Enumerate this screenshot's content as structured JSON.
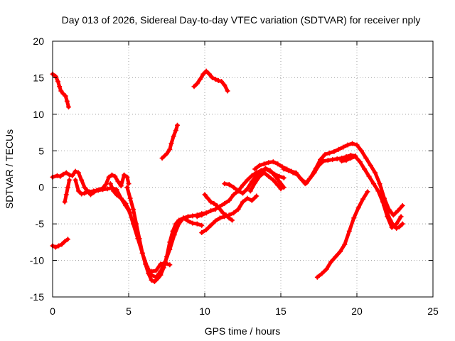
{
  "chart_data": {
    "type": "scatter",
    "title": "Day 013 of 2026, Sidereal Day-to-day VTEC variation (SDTVAR) for receiver nply",
    "xlabel": "GPS time / hours",
    "ylabel": "SDTVAR / TECUs",
    "xlim": [
      0,
      25
    ],
    "ylim": [
      -15,
      20
    ],
    "xticks": [
      0,
      5,
      10,
      15,
      20,
      25
    ],
    "yticks": [
      -15,
      -10,
      -5,
      0,
      5,
      10,
      15,
      20
    ],
    "xtick_labels": [
      "0",
      "5",
      "10",
      "15",
      "20",
      "25"
    ],
    "ytick_labels": [
      "-15",
      "-10",
      "-5",
      "0",
      "5",
      "10",
      "15",
      "20"
    ],
    "grid": true,
    "marker": "+",
    "color": "#ff0000",
    "series": [
      {
        "name": "s1",
        "points": [
          [
            0.0,
            15.5
          ],
          [
            0.2,
            15.2
          ],
          [
            0.35,
            14.5
          ],
          [
            0.45,
            13.8
          ],
          [
            0.55,
            13.2
          ],
          [
            0.7,
            12.8
          ],
          [
            0.85,
            12.5
          ],
          [
            0.95,
            11.8
          ],
          [
            1.05,
            11.0
          ]
        ]
      },
      {
        "name": "s2",
        "points": [
          [
            0.0,
            -8.0
          ],
          [
            0.2,
            -8.2
          ],
          [
            0.4,
            -8.0
          ],
          [
            0.6,
            -7.8
          ],
          [
            0.8,
            -7.4
          ],
          [
            1.0,
            -7.1
          ]
        ]
      },
      {
        "name": "s3",
        "points": [
          [
            0.0,
            1.4
          ],
          [
            0.3,
            1.6
          ],
          [
            0.5,
            1.5
          ],
          [
            0.7,
            1.8
          ],
          [
            0.9,
            2.0
          ],
          [
            1.1,
            1.7
          ],
          [
            1.3,
            1.6
          ],
          [
            1.5,
            2.2
          ],
          [
            1.7,
            2.0
          ],
          [
            1.9,
            1.0
          ],
          [
            2.1,
            0.0
          ],
          [
            2.3,
            -0.5
          ],
          [
            2.5,
            -1.0
          ],
          [
            2.7,
            -0.7
          ],
          [
            2.9,
            -0.4
          ],
          [
            3.1,
            -0.3
          ],
          [
            3.3,
            -0.1
          ],
          [
            3.5,
            0.4
          ],
          [
            3.7,
            1.4
          ],
          [
            3.9,
            1.7
          ],
          [
            4.1,
            1.5
          ],
          [
            4.3,
            0.8
          ],
          [
            4.5,
            0.2
          ],
          [
            4.7,
            1.7
          ],
          [
            4.9,
            1.4
          ],
          [
            5.0,
            0.5
          ]
        ]
      },
      {
        "name": "s4",
        "points": [
          [
            0.8,
            -2.0
          ],
          [
            0.9,
            -1.0
          ],
          [
            1.0,
            0.0
          ],
          [
            1.1,
            1.0
          ]
        ]
      },
      {
        "name": "s5",
        "points": [
          [
            1.5,
            1.0
          ],
          [
            1.7,
            -0.5
          ],
          [
            1.9,
            -0.9
          ],
          [
            2.1,
            -0.8
          ],
          [
            2.4,
            -0.6
          ],
          [
            2.7,
            -0.5
          ],
          [
            3.0,
            -0.4
          ],
          [
            3.3,
            -0.3
          ],
          [
            3.6,
            -0.2
          ],
          [
            3.9,
            -0.1
          ],
          [
            4.2,
            -0.3
          ],
          [
            4.5,
            -1.5
          ],
          [
            4.8,
            -2.5
          ],
          [
            5.1,
            -3.5
          ]
        ]
      },
      {
        "name": "s6",
        "points": [
          [
            3.8,
            0.5
          ],
          [
            4.0,
            -0.5
          ],
          [
            4.2,
            -1.0
          ],
          [
            4.5,
            -1.5
          ],
          [
            4.8,
            -2.2
          ],
          [
            5.0,
            -3.0
          ],
          [
            5.3,
            -5.0
          ],
          [
            5.6,
            -7.0
          ],
          [
            5.9,
            -9.0
          ],
          [
            6.2,
            -10.8
          ],
          [
            6.5,
            -12.0
          ],
          [
            6.8,
            -12.3
          ],
          [
            7.1,
            -11.5
          ],
          [
            7.4,
            -10.2
          ],
          [
            7.7,
            -8.5
          ],
          [
            8.0,
            -6.5
          ],
          [
            8.3,
            -5.0
          ],
          [
            8.6,
            -4.2
          ],
          [
            8.9,
            -4.0
          ],
          [
            9.2,
            -3.9
          ],
          [
            9.5,
            -3.8
          ],
          [
            9.8,
            -3.6
          ],
          [
            10.1,
            -3.5
          ]
        ]
      },
      {
        "name": "s7",
        "points": [
          [
            4.9,
            0.0
          ],
          [
            5.1,
            -1.5
          ],
          [
            5.3,
            -3.0
          ],
          [
            5.5,
            -5.0
          ],
          [
            5.7,
            -7.0
          ],
          [
            5.9,
            -9.0
          ],
          [
            6.1,
            -10.5
          ],
          [
            6.3,
            -11.8
          ],
          [
            6.5,
            -12.7
          ],
          [
            6.7,
            -12.9
          ],
          [
            6.9,
            -12.5
          ],
          [
            7.1,
            -12.0
          ],
          [
            7.3,
            -11.0
          ],
          [
            7.5,
            -9.5
          ],
          [
            7.7,
            -7.5
          ],
          [
            7.9,
            -6.0
          ],
          [
            8.1,
            -5.0
          ],
          [
            8.3,
            -4.5
          ],
          [
            8.6,
            -4.2
          ],
          [
            8.9,
            -4.6
          ],
          [
            9.2,
            -4.9
          ],
          [
            9.5,
            -5.0
          ],
          [
            9.8,
            -5.2
          ]
        ]
      },
      {
        "name": "s8",
        "points": [
          [
            6.5,
            -11.5
          ],
          [
            6.8,
            -11.4
          ],
          [
            7.1,
            -10.5
          ],
          [
            7.4,
            -10.4
          ],
          [
            7.7,
            -10.6
          ]
        ]
      },
      {
        "name": "s9",
        "points": [
          [
            7.2,
            4.0
          ],
          [
            7.5,
            4.6
          ],
          [
            7.7,
            5.2
          ],
          [
            7.8,
            6.0
          ],
          [
            7.95,
            7.0
          ],
          [
            8.1,
            7.8
          ],
          [
            8.2,
            8.5
          ]
        ]
      },
      {
        "name": "s10",
        "points": [
          [
            9.3,
            13.8
          ],
          [
            9.5,
            14.2
          ],
          [
            9.7,
            14.8
          ],
          [
            9.9,
            15.5
          ],
          [
            10.1,
            15.9
          ],
          [
            10.3,
            15.5
          ],
          [
            10.5,
            15.0
          ],
          [
            10.7,
            14.8
          ],
          [
            10.9,
            14.6
          ],
          [
            11.1,
            14.5
          ],
          [
            11.3,
            14.0
          ],
          [
            11.5,
            13.2
          ]
        ]
      },
      {
        "name": "s11",
        "points": [
          [
            10.0,
            -1.0
          ],
          [
            10.2,
            -1.5
          ],
          [
            10.4,
            -2.0
          ],
          [
            10.6,
            -2.2
          ],
          [
            10.8,
            -2.5
          ],
          [
            11.0,
            -3.0
          ],
          [
            11.2,
            -3.5
          ],
          [
            11.4,
            -3.8
          ],
          [
            11.6,
            -4.2
          ],
          [
            11.8,
            -4.5
          ]
        ]
      },
      {
        "name": "s12",
        "points": [
          [
            9.8,
            -6.2
          ],
          [
            10.1,
            -5.8
          ],
          [
            10.4,
            -5.2
          ],
          [
            10.7,
            -4.6
          ],
          [
            11.0,
            -4.2
          ],
          [
            11.3,
            -4.0
          ],
          [
            11.6,
            -3.8
          ],
          [
            11.9,
            -3.5
          ],
          [
            12.2,
            -3.0
          ],
          [
            12.5,
            -2.0
          ],
          [
            12.8,
            -1.5
          ],
          [
            13.1,
            -1.8
          ],
          [
            13.4,
            -1.2
          ]
        ]
      },
      {
        "name": "s13",
        "points": [
          [
            9.5,
            -4.0
          ],
          [
            9.8,
            -3.8
          ],
          [
            10.1,
            -3.5
          ],
          [
            10.4,
            -3.2
          ],
          [
            10.7,
            -3.0
          ],
          [
            11.0,
            -2.6
          ],
          [
            11.3,
            -2.2
          ],
          [
            11.6,
            -1.8
          ],
          [
            11.9,
            -1.0
          ],
          [
            12.2,
            -0.5
          ],
          [
            12.5,
            0.3
          ],
          [
            12.8,
            1.0
          ],
          [
            13.1,
            1.6
          ],
          [
            13.4,
            2.0
          ],
          [
            13.7,
            2.3
          ],
          [
            14.0,
            2.5
          ],
          [
            14.3,
            2.2
          ],
          [
            14.6,
            1.8
          ],
          [
            14.9,
            1.5
          ],
          [
            15.2,
            1.3
          ]
        ]
      },
      {
        "name": "s14",
        "points": [
          [
            11.3,
            0.5
          ],
          [
            11.6,
            0.4
          ],
          [
            11.9,
            0.0
          ],
          [
            12.2,
            -0.5
          ],
          [
            12.5,
            -0.8
          ],
          [
            12.8,
            -0.2
          ],
          [
            13.1,
            0.8
          ],
          [
            13.4,
            1.6
          ],
          [
            13.7,
            2.2
          ],
          [
            14.0,
            2.6
          ],
          [
            14.3,
            2.3
          ],
          [
            14.6,
            1.6
          ],
          [
            14.9,
            0.8
          ],
          [
            15.2,
            0.0
          ]
        ]
      },
      {
        "name": "s15",
        "points": [
          [
            13.0,
            -0.5
          ],
          [
            13.3,
            0.6
          ],
          [
            13.6,
            1.5
          ],
          [
            13.9,
            2.0
          ],
          [
            14.2,
            1.5
          ],
          [
            14.5,
            1.0
          ],
          [
            14.8,
            0.3
          ],
          [
            15.0,
            -0.2
          ]
        ]
      },
      {
        "name": "s16",
        "points": [
          [
            13.3,
            2.5
          ],
          [
            13.6,
            3.0
          ],
          [
            13.9,
            3.2
          ],
          [
            14.2,
            3.4
          ],
          [
            14.5,
            3.5
          ],
          [
            14.8,
            3.2
          ],
          [
            15.1,
            2.8
          ],
          [
            15.4,
            2.5
          ],
          [
            15.7,
            2.2
          ],
          [
            16.0,
            2.0
          ],
          [
            16.3,
            1.2
          ],
          [
            16.6,
            0.5
          ],
          [
            16.9,
            1.2
          ],
          [
            17.2,
            2.0
          ],
          [
            17.5,
            3.0
          ],
          [
            17.8,
            3.6
          ],
          [
            18.1,
            3.7
          ],
          [
            18.4,
            3.8
          ],
          [
            18.7,
            3.9
          ],
          [
            19.0,
            4.0
          ],
          [
            19.3,
            4.2
          ],
          [
            19.6,
            4.4
          ],
          [
            19.9,
            4.3
          ]
        ]
      },
      {
        "name": "s17",
        "points": [
          [
            15.2,
            2.5
          ],
          [
            15.5,
            2.3
          ],
          [
            15.8,
            2.0
          ],
          [
            16.1,
            1.7
          ],
          [
            16.4,
            1.0
          ],
          [
            16.7,
            0.6
          ],
          [
            17.0,
            1.5
          ],
          [
            17.3,
            2.6
          ],
          [
            17.6,
            3.8
          ],
          [
            17.9,
            4.5
          ],
          [
            18.2,
            4.7
          ],
          [
            18.5,
            4.9
          ],
          [
            18.8,
            5.2
          ],
          [
            19.1,
            5.5
          ],
          [
            19.4,
            5.8
          ],
          [
            19.7,
            6.0
          ],
          [
            20.0,
            5.8
          ],
          [
            20.3,
            5.0
          ],
          [
            20.6,
            4.0
          ],
          [
            20.9,
            3.0
          ],
          [
            21.2,
            2.0
          ],
          [
            21.5,
            0.5
          ],
          [
            21.8,
            -1.5
          ],
          [
            22.1,
            -3.0
          ],
          [
            22.4,
            -3.8
          ],
          [
            22.7,
            -3.2
          ],
          [
            23.0,
            -2.5
          ]
        ]
      },
      {
        "name": "s18",
        "points": [
          [
            19.0,
            3.6
          ],
          [
            19.3,
            3.7
          ],
          [
            19.6,
            4.0
          ],
          [
            19.9,
            4.2
          ],
          [
            20.2,
            3.5
          ],
          [
            20.5,
            2.5
          ],
          [
            20.8,
            1.5
          ],
          [
            21.1,
            0.5
          ],
          [
            21.4,
            -0.5
          ],
          [
            21.7,
            -2.0
          ],
          [
            22.0,
            -4.0
          ],
          [
            22.3,
            -5.5
          ],
          [
            22.6,
            -5.0
          ],
          [
            22.9,
            -4.0
          ]
        ]
      },
      {
        "name": "s19",
        "points": [
          [
            17.4,
            -12.3
          ],
          [
            17.7,
            -11.8
          ],
          [
            18.0,
            -11.2
          ],
          [
            18.3,
            -10.2
          ],
          [
            18.6,
            -9.5
          ],
          [
            18.9,
            -8.8
          ],
          [
            19.2,
            -7.8
          ],
          [
            19.5,
            -6.0
          ],
          [
            19.8,
            -4.2
          ],
          [
            20.1,
            -2.8
          ],
          [
            20.4,
            -1.6
          ],
          [
            20.7,
            -0.6
          ]
        ]
      },
      {
        "name": "s20",
        "points": [
          [
            21.8,
            -2.5
          ],
          [
            22.0,
            -3.5
          ],
          [
            22.2,
            -4.5
          ],
          [
            22.4,
            -5.2
          ],
          [
            22.6,
            -5.6
          ],
          [
            22.8,
            -5.4
          ],
          [
            23.0,
            -5.0
          ]
        ]
      }
    ]
  }
}
